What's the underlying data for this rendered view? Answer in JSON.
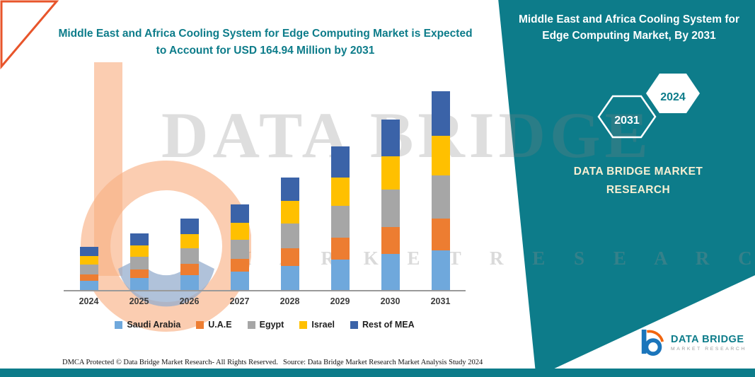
{
  "page": {
    "main_title": "Middle East and Africa Cooling System for Edge Computing Market is Expected to Account for USD 164.94 Million by 2031"
  },
  "side_panel": {
    "title": "Middle East and Africa Cooling System for Edge Computing Market, By 2031",
    "hexagon_back_label": "2031",
    "hexagon_front_label": "2024",
    "brand_line1": "DATA BRIDGE MARKET",
    "brand_line2": "RESEARCH"
  },
  "watermark": {
    "line1": "DATA BRIDGE",
    "line2": "M A R K E T   R E S E A R C H"
  },
  "footer": {
    "dmca": "DMCA Protected © Data Bridge Market Research-  All Rights Reserved.",
    "source": "Source: Data Bridge Market Research  Market Analysis Study 2024"
  },
  "logo": {
    "name": "DATA BRIDGE",
    "subtitle": "MARKET RESEARCH"
  },
  "colors": {
    "teal": "#0d7c8a",
    "accent_orange": "#e8552b"
  },
  "chart_data": {
    "type": "bar",
    "stacked": true,
    "title": "Middle East and Africa Cooling System for Edge Computing Market is Expected to Account for USD 164.94 Million by 2031",
    "unit": "USD Million",
    "annotation": "Total expected to account for USD 164.94 Million by 2031",
    "grid": false,
    "legend_position": "bottom",
    "ylim": [
      0,
      170
    ],
    "categories": [
      "2024",
      "2025",
      "2026",
      "2027",
      "2028",
      "2029",
      "2030",
      "2031"
    ],
    "series": [
      {
        "name": "Saudi Arabia",
        "color": "#6FA8DC",
        "values": [
          7.5,
          10,
          12.5,
          15,
          20,
          25,
          30,
          33
        ]
      },
      {
        "name": "U.A.E",
        "color": "#ED7D31",
        "values": [
          5.5,
          7,
          9,
          11,
          14.5,
          18.5,
          22,
          26
        ]
      },
      {
        "name": "Egypt",
        "color": "#A6A6A6",
        "values": [
          8,
          10.5,
          13,
          15.5,
          20.5,
          26,
          31,
          36
        ]
      },
      {
        "name": "Israel",
        "color": "#FFC000",
        "values": [
          7,
          9.5,
          12,
          14.5,
          19,
          24,
          28,
          33
        ]
      },
      {
        "name": "Rest of MEA",
        "color": "#3B63A8",
        "values": [
          8,
          10,
          12.5,
          15,
          19.5,
          25.5,
          30,
          36.94
        ]
      }
    ],
    "totals": [
      36,
      47,
      59,
      71,
      93.5,
      119,
      141,
      164.94
    ]
  }
}
